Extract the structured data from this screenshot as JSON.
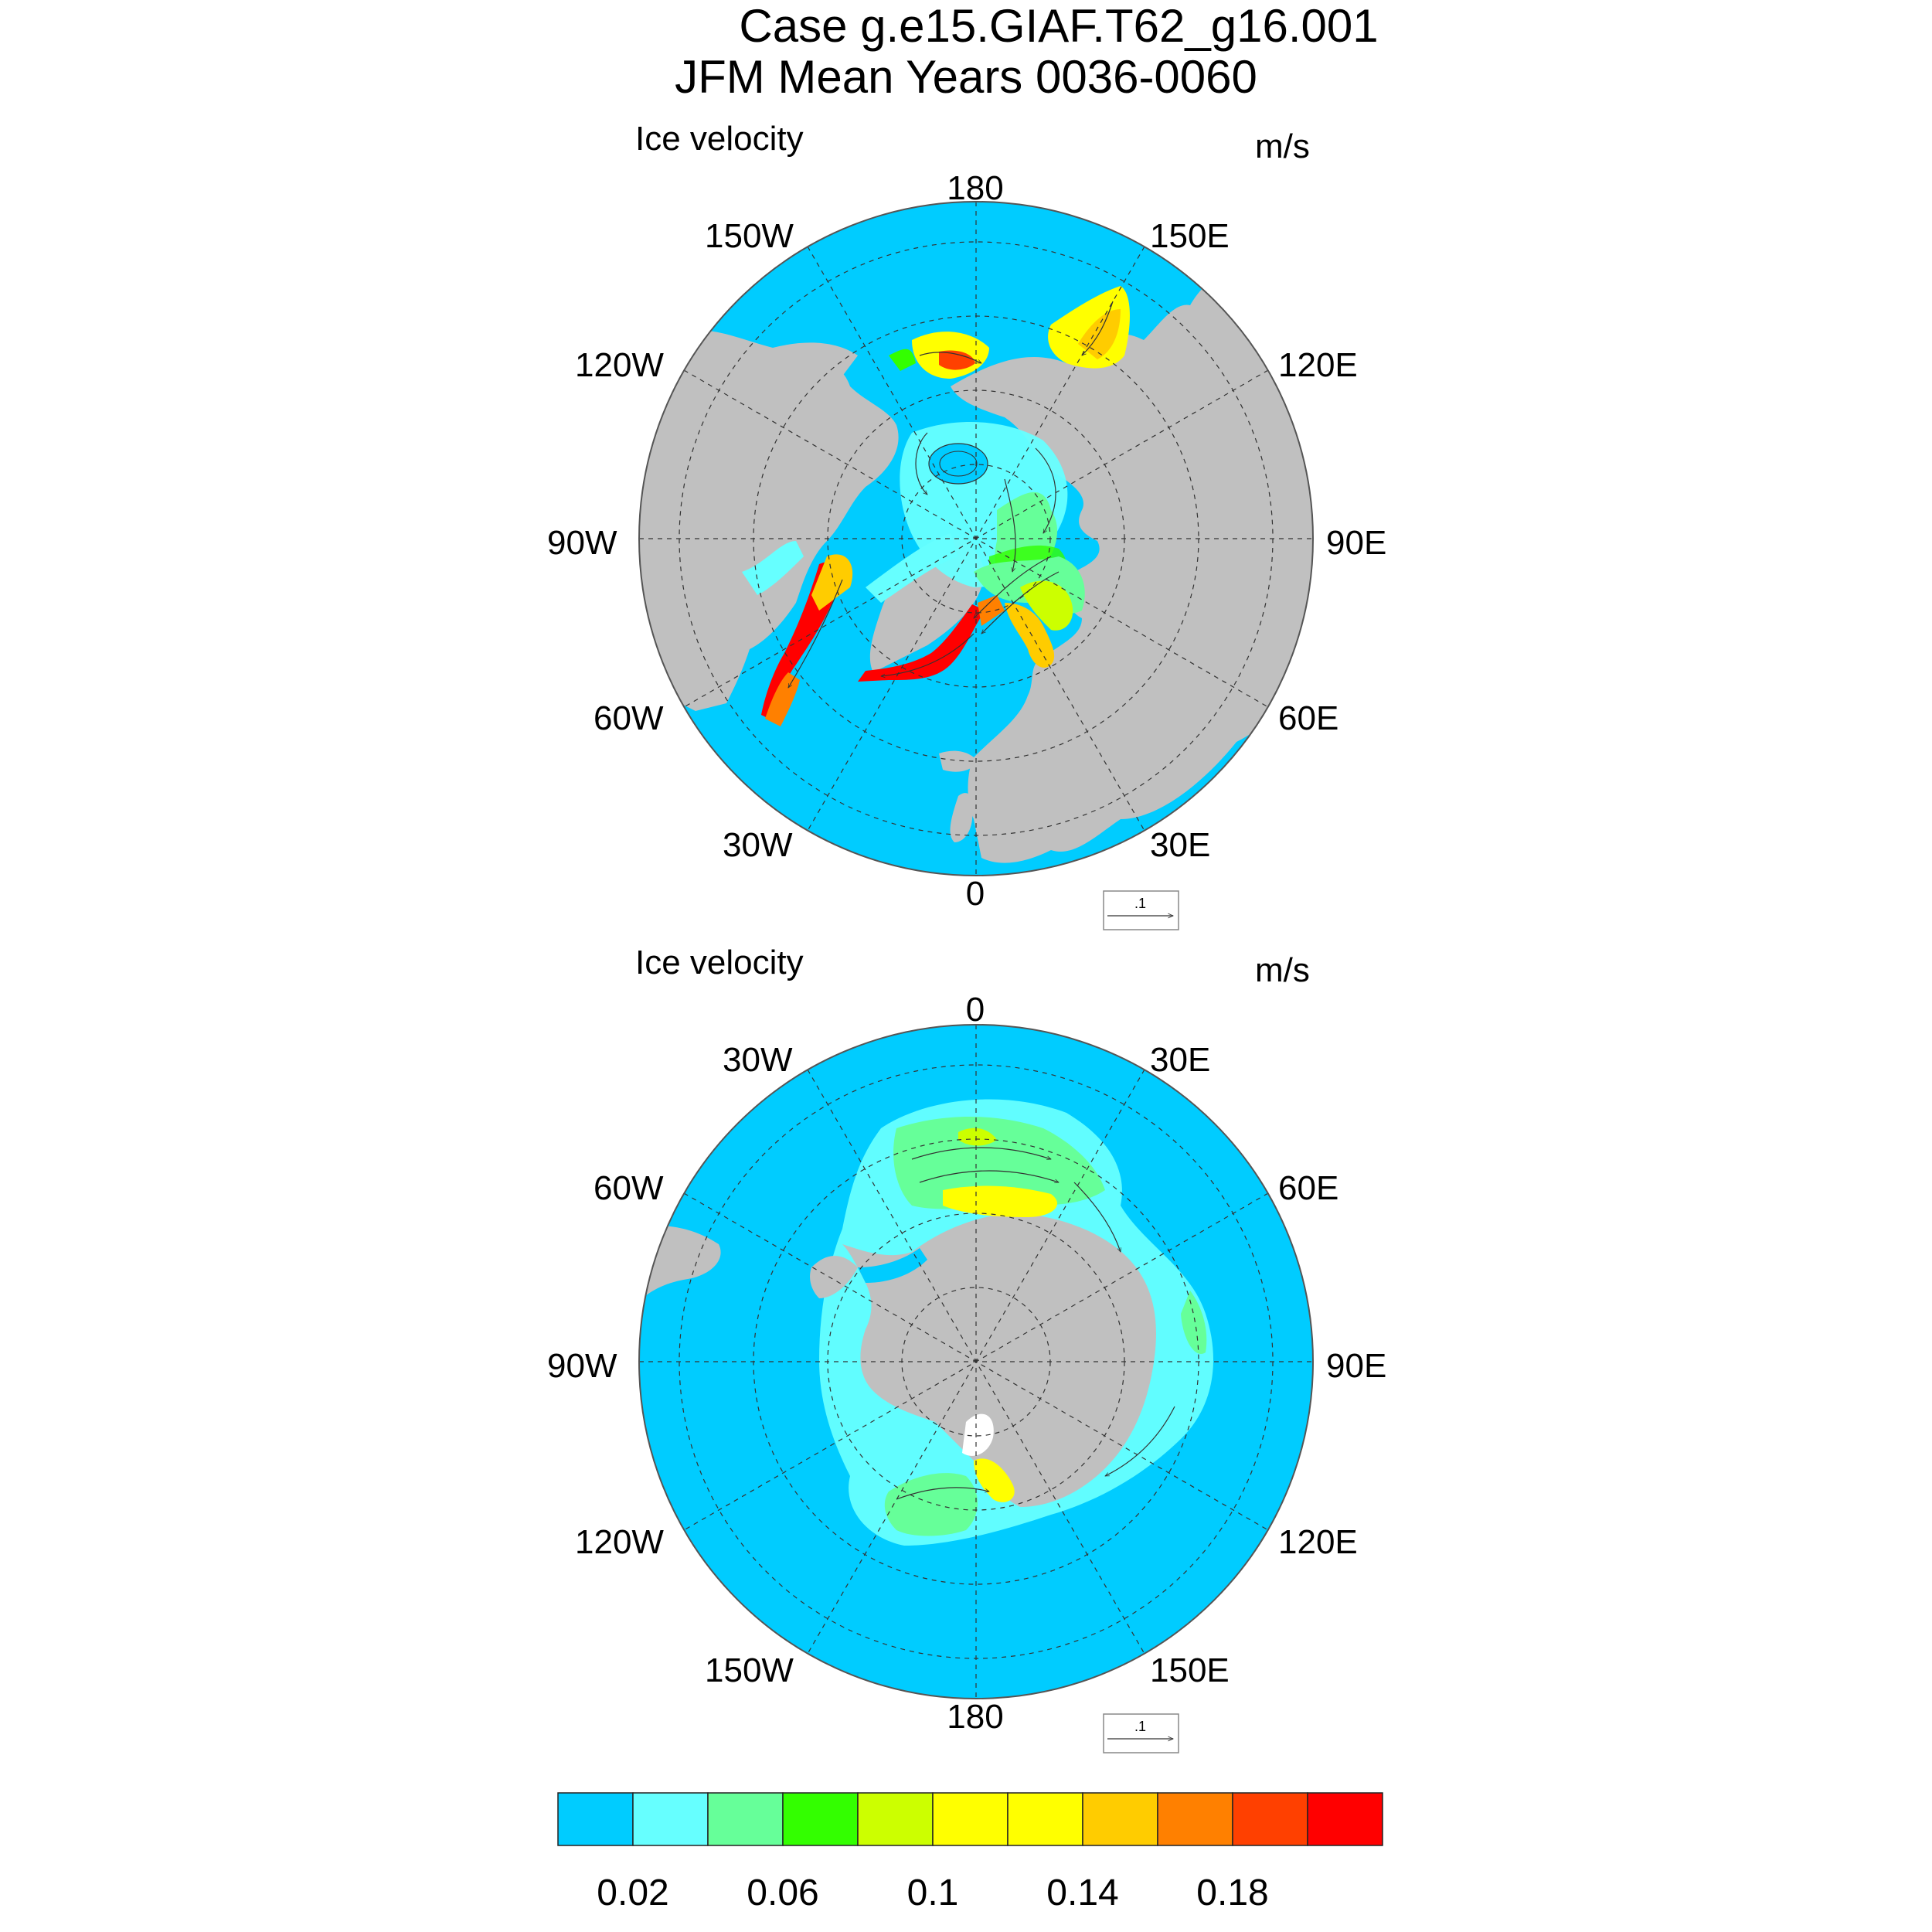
{
  "title": {
    "line1": "Case g.e15.GIAF.T62_g16.001",
    "line2": "JFM Mean   Years 0036-0060"
  },
  "north_panel": {
    "left_title": "Ice velocity",
    "units": "m/s",
    "lon_labels": {
      "top": "180",
      "bottom": "0",
      "upper_left": "150W",
      "upper_right": "150E",
      "mid_upper_left": "120W",
      "mid_upper_right": "120E",
      "left": "90W",
      "right": "90E",
      "mid_lower_left": "60W",
      "mid_lower_right": "60E",
      "lower_left": "30W",
      "lower_right": "30E"
    },
    "ref_vector_label": ".1"
  },
  "south_panel": {
    "left_title": "Ice velocity",
    "units": "m/s",
    "lon_labels": {
      "top": "0",
      "bottom": "180",
      "upper_left": "30W",
      "upper_right": "30E",
      "mid_upper_left": "60W",
      "mid_upper_right": "60E",
      "left": "90W",
      "right": "90E",
      "mid_lower_left": "120W",
      "mid_lower_right": "120E",
      "lower_left": "150W",
      "lower_right": "150E"
    },
    "ref_vector_label": ".1"
  },
  "colorbar": {
    "colors": [
      "#00ccff",
      "#66ffff",
      "#66ff99",
      "#33ff00",
      "#ccff00",
      "#ffff00",
      "#ffff00",
      "#ffcc00",
      "#ff8000",
      "#ff4000",
      "#ff0000"
    ],
    "labels": [
      "0.02",
      "0.06",
      "0.1",
      "0.14",
      "0.18"
    ]
  },
  "palette": {
    "ocean": "#00ccff",
    "land": "#c0c0c0",
    "coast": "#ffffff"
  }
}
